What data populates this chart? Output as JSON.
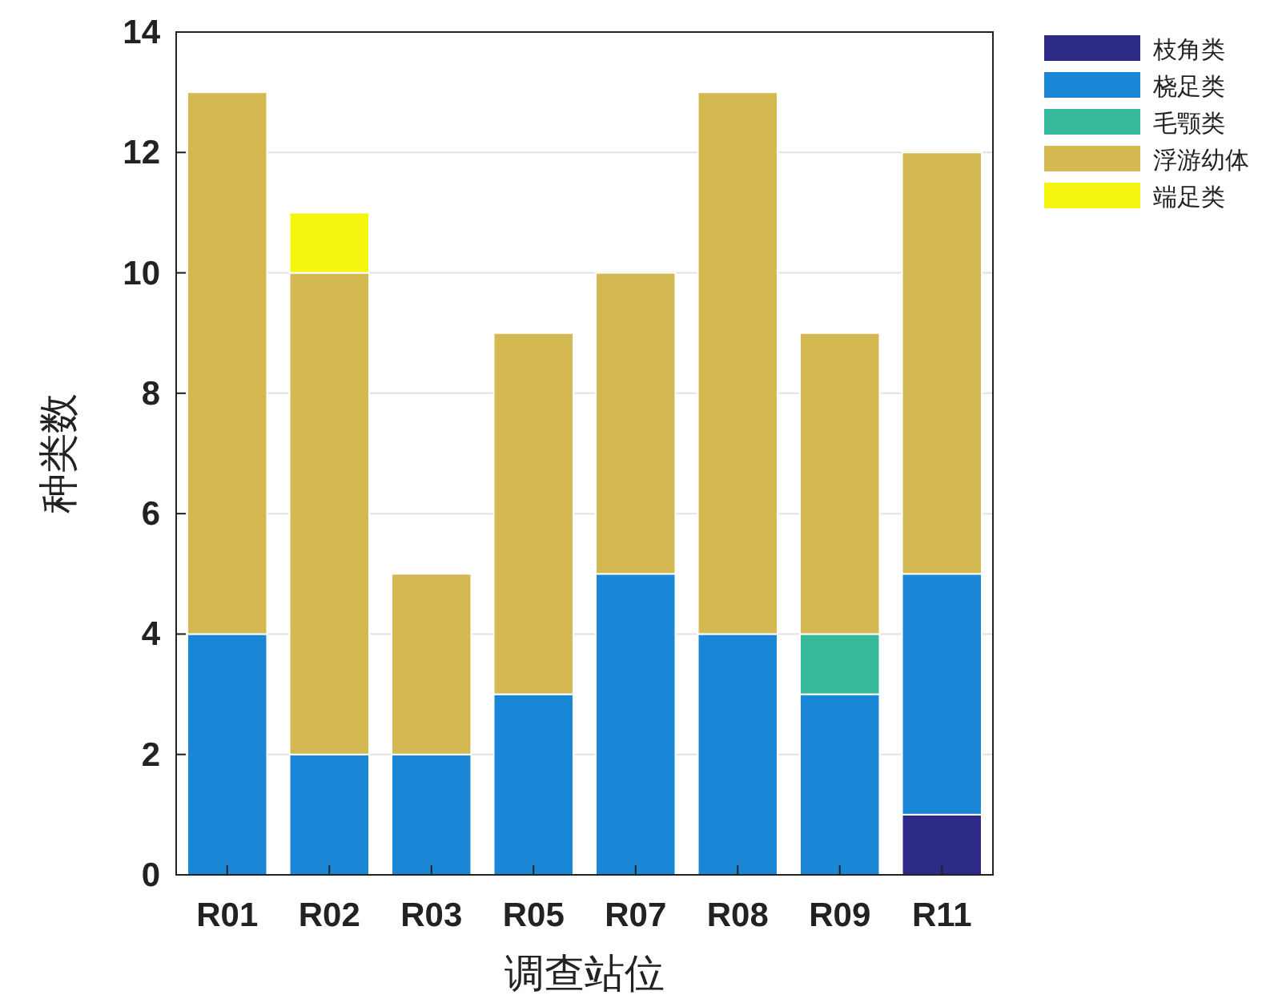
{
  "chart_data": {
    "type": "bar",
    "stacked": true,
    "xlabel": "调查站位",
    "ylabel": "种类数",
    "categories": [
      "R01",
      "R02",
      "R03",
      "R05",
      "R07",
      "R08",
      "R09",
      "R11"
    ],
    "series": [
      {
        "name": "枝角类",
        "color": "#2e2a87",
        "values": [
          0,
          0,
          0,
          0,
          0,
          0,
          0,
          1
        ]
      },
      {
        "name": "桡足类",
        "color": "#1a87d6",
        "values": [
          4,
          2,
          2,
          3,
          5,
          4,
          3,
          4
        ]
      },
      {
        "name": "毛颚类",
        "color": "#36b89a",
        "values": [
          0,
          0,
          0,
          0,
          0,
          0,
          1,
          0
        ]
      },
      {
        "name": "浮游幼体",
        "color": "#d4b852",
        "values": [
          9,
          8,
          3,
          6,
          5,
          9,
          5,
          7
        ]
      },
      {
        "name": "端足类",
        "color": "#f5f50f",
        "values": [
          0,
          1,
          0,
          0,
          0,
          0,
          0,
          0
        ]
      }
    ],
    "ylim": [
      0,
      14
    ],
    "yticks": [
      0,
      2,
      4,
      6,
      8,
      10,
      12,
      14
    ],
    "grid": "y",
    "legend": "top right"
  }
}
